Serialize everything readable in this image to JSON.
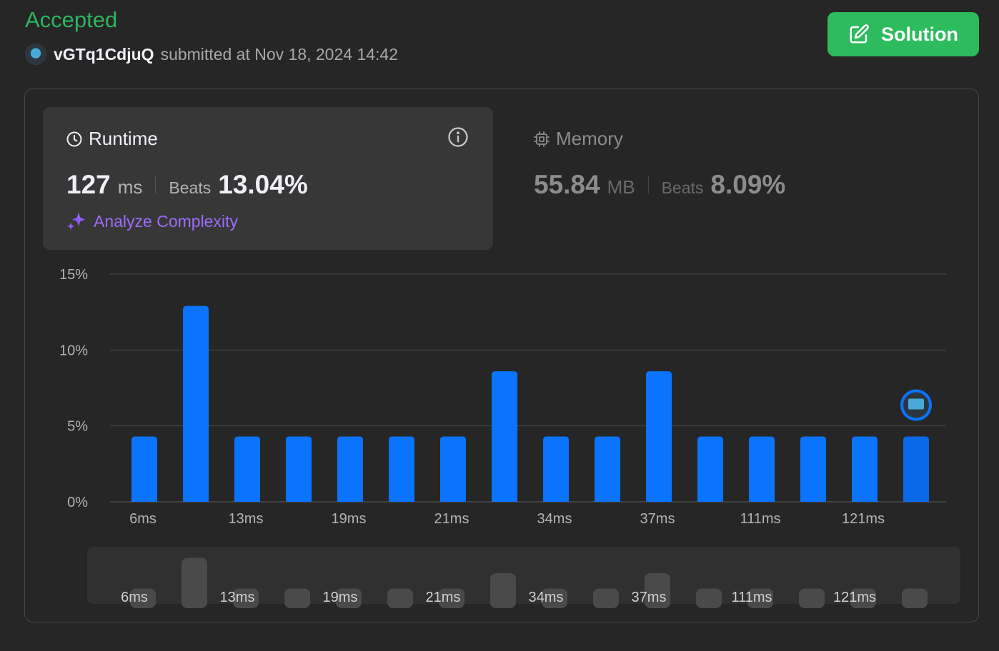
{
  "submission": {
    "status": "Accepted",
    "username": "vGTq1CdjuQ",
    "submitted_text": "submitted at Nov 18, 2024 14:42"
  },
  "solution_button": {
    "label": "Solution",
    "icon": "edit-icon"
  },
  "runtime": {
    "title": "Runtime",
    "value": "127",
    "unit": "ms",
    "beats_label": "Beats",
    "beats_value": "13.04%",
    "analyze_label": "Analyze Complexity"
  },
  "memory": {
    "title": "Memory",
    "value": "55.84",
    "unit": "MB",
    "beats_label": "Beats",
    "beats_value": "8.09%"
  },
  "colors": {
    "accent_green": "#2cbb5d",
    "bar_blue": "#0a74ff",
    "purple": "#9f6bff"
  },
  "chart_data": {
    "type": "bar",
    "y_ticks": [
      "15%",
      "10%",
      "5%",
      "0%"
    ],
    "ylim": [
      0,
      15
    ],
    "x_tick_labels": [
      "6ms",
      "13ms",
      "19ms",
      "21ms",
      "34ms",
      "37ms",
      "111ms",
      "121ms"
    ],
    "values": [
      4.3,
      12.9,
      4.3,
      4.3,
      4.3,
      4.3,
      4.3,
      8.6,
      4.3,
      4.3,
      8.6,
      4.3,
      4.3,
      4.3,
      4.3,
      4.3
    ],
    "highlight_index": 15,
    "grid": true
  }
}
